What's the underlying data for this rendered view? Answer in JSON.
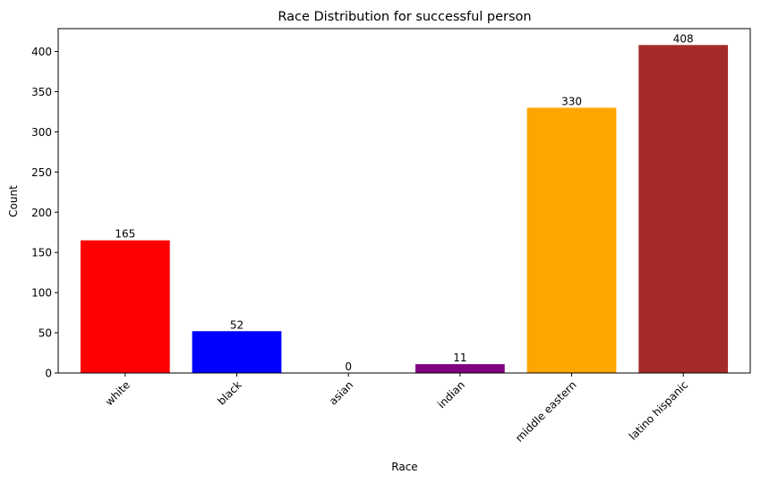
{
  "chart_data": {
    "type": "bar",
    "title": "Race Distribution for successful person",
    "xlabel": "Race",
    "ylabel": "Count",
    "categories": [
      "white",
      "black",
      "asian",
      "indian",
      "middle eastern",
      "latino hispanic"
    ],
    "values": [
      165,
      52,
      0,
      11,
      330,
      408
    ],
    "data_labels": [
      "165",
      "52",
      "0",
      "11",
      "330",
      "408"
    ],
    "colors": [
      "#ff0000",
      "#0000ff",
      "#000000",
      "#800080",
      "#ffa500",
      "#a52a2a"
    ],
    "ylim": [
      0,
      428.4
    ],
    "yticks": [
      0,
      50,
      100,
      150,
      200,
      250,
      300,
      350,
      400
    ],
    "xtick_rotation": 45,
    "grid": false,
    "legend": "none"
  }
}
